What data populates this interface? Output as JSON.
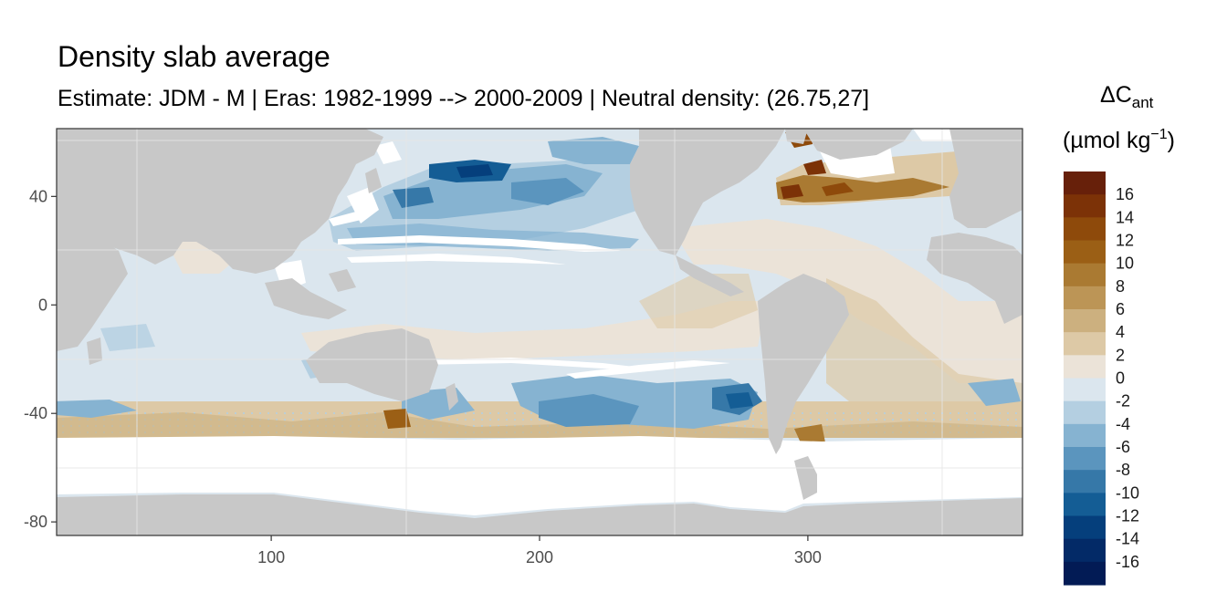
{
  "title": "Density slab average",
  "subtitle": "Estimate: JDM - M | Eras: 1982-1999 --> 2000-2009 | Neutral density: (26.75,27]",
  "map": {
    "x_ticks": [
      100,
      200,
      300
    ],
    "y_ticks": [
      40,
      0,
      -40,
      -80
    ],
    "xlim": [
      20,
      380
    ],
    "ylim": [
      -85,
      65
    ],
    "land_color": "#c8c8c8",
    "ocean_no_data_color": "#ffffff",
    "grid": true
  },
  "legend": {
    "title_main": "ΔC",
    "title_sub": "ant",
    "unit": "(µmol kg",
    "unit_sup": "−1",
    "unit_close": ")",
    "labels": [
      "16",
      "14",
      "12",
      "10",
      "8",
      "6",
      "4",
      "2",
      "0",
      "-2",
      "-4",
      "-6",
      "-8",
      "-10",
      "-12",
      "-14",
      "-16"
    ],
    "colors": [
      "#67200a",
      "#7c3207",
      "#8e4a0b",
      "#9b5f15",
      "#aa7a32",
      "#bc9556",
      "#ccb07f",
      "#ddc9a6",
      "#ebe3d8",
      "#dbe6ee",
      "#b4cfe1",
      "#86b3d1",
      "#5b95be",
      "#3678a8",
      "#145d95",
      "#053f7c",
      "#032a67",
      "#021b55"
    ],
    "position": "right"
  }
}
